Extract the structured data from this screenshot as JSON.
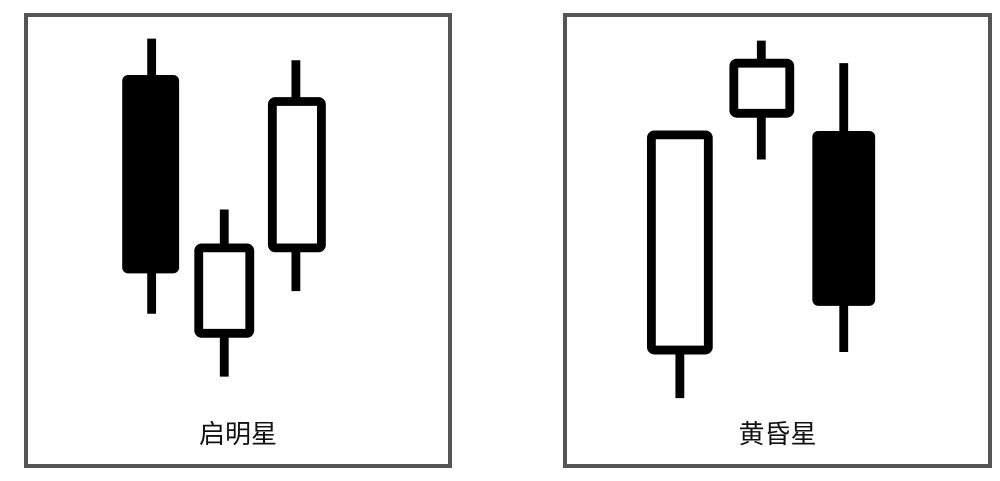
{
  "colors": {
    "border": "#555555",
    "candle_stroke": "#000000",
    "bearish_fill": "#000000",
    "bullish_fill": "#ffffff",
    "background": "#ffffff"
  },
  "panels": [
    {
      "id": "morning-star",
      "caption": "启明星",
      "candles": [
        {
          "type": "bearish",
          "high": 1.0,
          "open": 0.86,
          "close": 0.15,
          "low": 0.0
        },
        {
          "type": "bullish",
          "high": 0.62,
          "close": 0.51,
          "open": 0.18,
          "low": 0.0
        },
        {
          "type": "bullish",
          "high": 0.95,
          "close": 0.82,
          "open": 0.27,
          "low": 0.0
        }
      ]
    },
    {
      "id": "evening-star",
      "caption": "黄昏星",
      "candles": [
        {
          "type": "bullish",
          "high": 0.87,
          "close": 0.87,
          "open": 0.16,
          "low": 0.0
        },
        {
          "type": "bullish",
          "high": 1.0,
          "close": 0.97,
          "open": 0.81,
          "low": 0.66
        },
        {
          "type": "bearish",
          "high": 0.94,
          "open": 0.82,
          "close": 0.28,
          "low": 0.13
        }
      ]
    }
  ]
}
